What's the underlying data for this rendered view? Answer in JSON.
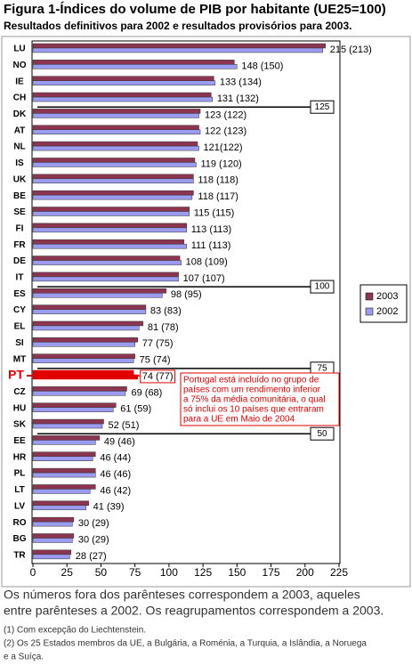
{
  "chart_data": {
    "type": "bar",
    "orientation": "horizontal",
    "title": "Figura 1-Índices do volume de PIB por habitante (UE25=100)",
    "subtitle": "Resultados definitivos para 2002 e resultados provisórios para 2003.",
    "categories": [
      "LU",
      "NO",
      "IE",
      "CH",
      "DK",
      "AT",
      "NL",
      "IS",
      "UK",
      "BE",
      "SE",
      "FI",
      "FR",
      "DE",
      "IT",
      "ES",
      "CY",
      "EL",
      "SI",
      "MT",
      "PT",
      "CZ",
      "HU",
      "SK",
      "EE",
      "HR",
      "PL",
      "LT",
      "LV",
      "RO",
      "BG",
      "TR"
    ],
    "series": [
      {
        "name": "2003",
        "color": "#8b3550",
        "values": [
          215,
          148,
          133,
          131,
          123,
          122,
          121,
          119,
          118,
          118,
          115,
          113,
          111,
          108,
          107,
          98,
          83,
          81,
          77,
          75,
          74,
          69,
          61,
          52,
          49,
          46,
          46,
          46,
          41,
          30,
          30,
          28
        ]
      },
      {
        "name": "2002",
        "color": "#9b9bf0",
        "values": [
          213,
          150,
          134,
          132,
          122,
          123,
          122,
          120,
          118,
          117,
          115,
          113,
          113,
          109,
          107,
          95,
          83,
          78,
          75,
          74,
          77,
          68,
          59,
          51,
          46,
          44,
          46,
          42,
          39,
          29,
          29,
          27
        ]
      }
    ],
    "value_labels": [
      "215 (213)",
      "148 (150)",
      "133 (134)",
      "131 (132)",
      "123 (122)",
      "122 (123)",
      "121(122)",
      "119 (120)",
      "118 (118)",
      "118 (117)",
      "115 (115)",
      "113 (113)",
      "111 (113)",
      "108 (109)",
      "107 (107)",
      "98 (95)",
      "83 (83)",
      "81 (78)",
      "77 (75)",
      "75 (74)",
      "74 (77)",
      "69 (68)",
      "61 (59)",
      "52 (51)",
      "49 (46)",
      "46 (44)",
      "46 (46)",
      "46 (42)",
      "41 (39)",
      "30 (29)",
      "30 (29)",
      "28 (27)"
    ],
    "xlim": [
      0,
      225
    ],
    "xticks": [
      0,
      25,
      50,
      75,
      100,
      125,
      150,
      175,
      200,
      225
    ],
    "thresholds": [
      125,
      100,
      75,
      50
    ],
    "highlight": "PT",
    "highlight_color": "#e00000",
    "annotation": [
      "Portugal está incluído no grupo de",
      "países com um rendimento inferior",
      "a 75% da média comunitária, o qual",
      "só inclui os 10 países que entraram",
      "para a UE em Maio de 2004"
    ],
    "legend_position": "right",
    "footnote": [
      "Os números fora dos parênteses correspondem a 2003, aqueles",
      "entre parênteses a 2002. Os reagrupamentos correspondem a 2003."
    ],
    "notes": [
      "(1) Com excepção do Liechtenstein.",
      "(2) Os 25 Estados membros da UE, a Bulgária, a Roménia, a Turquia, a Islândia, a Noruega",
      "e a Suíça."
    ]
  }
}
